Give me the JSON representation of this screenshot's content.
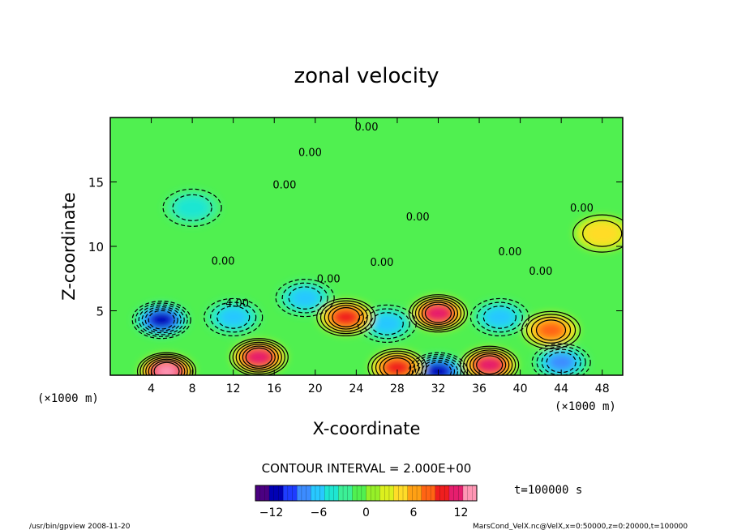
{
  "chart_data": {
    "type": "heatmap",
    "title": "zonal velocity",
    "xlabel": "X-coordinate",
    "ylabel": "Z-coordinate",
    "x_unit": "(×1000 m)",
    "y_unit": "(×1000 m)",
    "x_ticks": [
      "4",
      "8",
      "12",
      "16",
      "20",
      "24",
      "28",
      "32",
      "36",
      "40",
      "44",
      "48"
    ],
    "y_ticks": [
      "5",
      "10",
      "15"
    ],
    "xlim": [
      0,
      50
    ],
    "ylim": [
      0,
      20
    ],
    "contour_interval_text": "CONTOUR INTERVAL = 2.000E+00",
    "contour_labels": [
      {
        "text": "0.00",
        "x": 25,
        "y": 19
      },
      {
        "text": "0.00",
        "x": 19.5,
        "y": 17
      },
      {
        "text": "0.00",
        "x": 17,
        "y": 14.5
      },
      {
        "text": "0.00",
        "x": 30,
        "y": 12
      },
      {
        "text": "0.00",
        "x": 46,
        "y": 12.7
      },
      {
        "text": "0.00",
        "x": 11,
        "y": 8.6
      },
      {
        "text": "0.00",
        "x": 26.5,
        "y": 8.5
      },
      {
        "text": "0.00",
        "x": 39,
        "y": 9.3
      },
      {
        "text": "0.00",
        "x": 42,
        "y": 7.8
      },
      {
        "text": "0.00",
        "x": 21.3,
        "y": 7.2
      },
      {
        "text": "-4.00",
        "x": 12.2,
        "y": 5.3
      }
    ],
    "features": [
      {
        "x": 5,
        "z": 4.3,
        "value": -11
      },
      {
        "x": 5.5,
        "z": 0.3,
        "value": 14
      },
      {
        "x": 14.5,
        "z": 1.4,
        "value": 12
      },
      {
        "x": 12,
        "z": 4.5,
        "value": -6
      },
      {
        "x": 19,
        "z": 6,
        "value": -6
      },
      {
        "x": 32,
        "z": 4.8,
        "value": 12
      },
      {
        "x": 32,
        "z": 0.3,
        "value": -12
      },
      {
        "x": 28,
        "z": 0.6,
        "value": 10
      },
      {
        "x": 37,
        "z": 0.8,
        "value": 12
      },
      {
        "x": 27,
        "z": 4,
        "value": -5
      },
      {
        "x": 38,
        "z": 4.5,
        "value": -5
      },
      {
        "x": 43,
        "z": 3.5,
        "value": 8
      },
      {
        "x": 44,
        "z": 1,
        "value": -7
      },
      {
        "x": 23,
        "z": 4.5,
        "value": 9
      },
      {
        "x": 48,
        "z": 11,
        "value": 4
      },
      {
        "x": 8,
        "z": 13,
        "value": -4
      }
    ],
    "colorbar": {
      "ticks": [
        "−12",
        "−6",
        "0",
        "6",
        "12"
      ],
      "min": -14,
      "max": 14,
      "colors": [
        "#4b0082",
        "#0000b4",
        "#1e3cff",
        "#3c8cff",
        "#28c8ff",
        "#1ee6d2",
        "#3cf096",
        "#50f050",
        "#96f028",
        "#dcf01e",
        "#ffdc28",
        "#ffa014",
        "#ff6414",
        "#f01e1e",
        "#e61e6e",
        "#ff96b4"
      ]
    },
    "time_text": "t=100000 s"
  },
  "footer": {
    "left": "/usr/bin/gpview  2008-11-20",
    "right": "MarsCond_VelX.nc@VelX,x=0:50000,z=0:20000,t=100000"
  }
}
